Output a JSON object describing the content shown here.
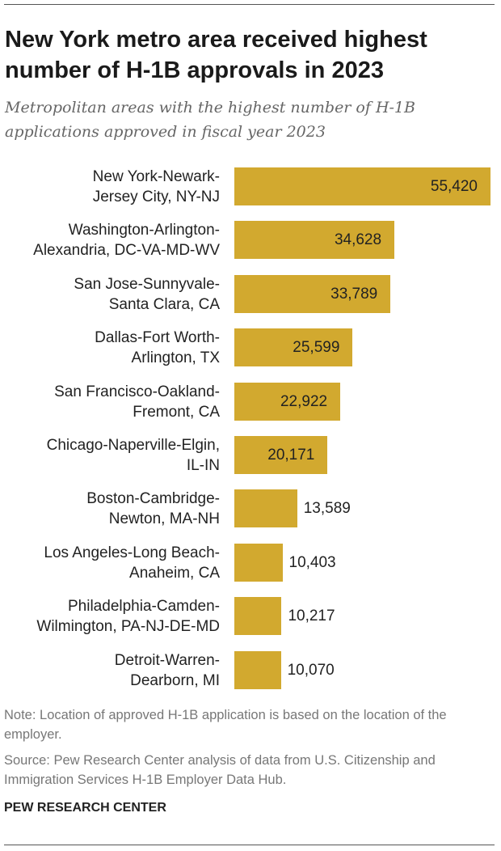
{
  "chart_data": {
    "type": "hbar",
    "title": "New York metro area received highest number of H-1B approvals in 2023",
    "subtitle": "Metropolitan areas with the highest number of H-1B applications approved in fiscal year 2023",
    "categories": [
      "New York-Newark-\nJersey City, NY-NJ",
      "Washington-Arlington-\nAlexandria, DC-VA-MD-WV",
      "San Jose-Sunnyvale-\nSanta Clara, CA",
      "Dallas-Fort Worth-\nArlington, TX",
      "San Francisco-Oakland-\nFremont, CA",
      "Chicago-Naperville-Elgin,\nIL-IN",
      "Boston-Cambridge-\nNewton, MA-NH",
      "Los Angeles-Long Beach-\nAnaheim, CA",
      "Philadelphia-Camden-\nWilmington, PA-NJ-DE-MD",
      "Detroit-Warren-\nDearborn, MI"
    ],
    "values": [
      55420,
      34628,
      33789,
      25599,
      22922,
      20171,
      13589,
      10403,
      10217,
      10070
    ],
    "value_labels": [
      "55,420",
      "34,628",
      "33,789",
      "25,599",
      "22,922",
      "20,171",
      "13,589",
      "10,403",
      "10,217",
      "10,070"
    ],
    "color": "#d2a92f",
    "note": "Note: Location of approved H-1B application is based on the location of the employer.",
    "source": "Source: Pew Research Center analysis of data from U.S. Citizenship and Immigration Services H-1B Employer Data Hub.",
    "brand": "PEW RESEARCH CENTER"
  }
}
